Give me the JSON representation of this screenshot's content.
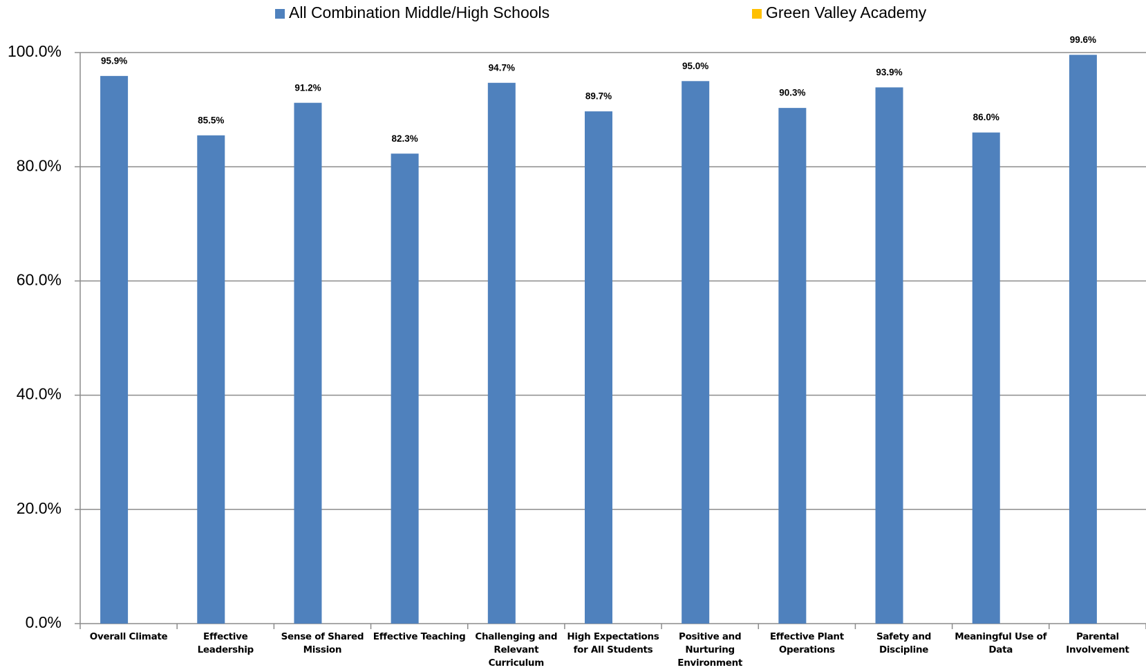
{
  "chart_data": {
    "type": "bar",
    "categories": [
      "Overall Climate",
      "Effective Leadership",
      "Sense of Shared Mission",
      "Effective Teaching",
      "Challenging and Relevant Curriculum",
      "High Expectations for All Students",
      "Positive and Nurturing Environment",
      "Effective Plant Operations",
      "Safety and Discipline",
      "Meaningful Use of Data",
      "Parental Involvement"
    ],
    "series": [
      {
        "name": "All Combination Middle/High Schools",
        "color": "#4f81bd",
        "values": [
          95.9,
          85.5,
          91.2,
          82.3,
          94.7,
          89.7,
          95.0,
          90.3,
          93.9,
          86.0,
          99.6
        ],
        "value_labels": [
          "95.9%",
          "85.5%",
          "91.2%",
          "82.3%",
          "94.7%",
          "89.7%",
          "95.0%",
          "90.3%",
          "93.9%",
          "86.0%",
          "99.6%"
        ]
      },
      {
        "name": "Green Valley Academy",
        "color": "#ffc000",
        "values": [
          null,
          null,
          null,
          null,
          null,
          null,
          null,
          null,
          null,
          null,
          null
        ]
      }
    ],
    "ylim": [
      0,
      100
    ],
    "yticks": [
      {
        "value": 0,
        "label": "0.0%"
      },
      {
        "value": 20,
        "label": "20.0%"
      },
      {
        "value": 40,
        "label": "40.0%"
      },
      {
        "value": 60,
        "label": "60.0%"
      },
      {
        "value": 80,
        "label": "80.0%"
      },
      {
        "value": 100,
        "label": "100.0%"
      }
    ],
    "grid": true,
    "legend": "top"
  }
}
